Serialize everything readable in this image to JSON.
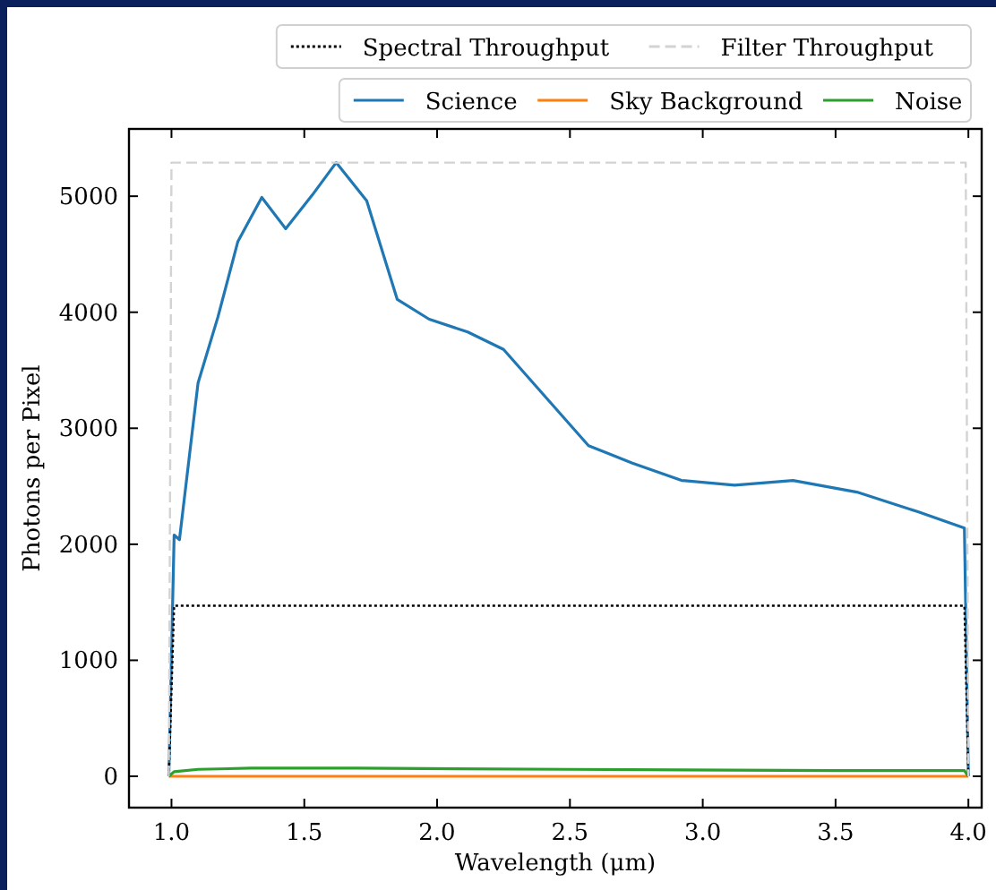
{
  "chart_data": {
    "type": "line",
    "xlabel": "Wavelength (μm)",
    "ylabel": "Photons per Pixel",
    "xlim": [
      0.84,
      4.05
    ],
    "ylim": [
      -270,
      5580
    ],
    "xticks": [
      {
        "value": 1,
        "label": "1.0"
      },
      {
        "value": 1.5,
        "label": "1.5"
      },
      {
        "value": 2,
        "label": "2.0"
      },
      {
        "value": 2.5,
        "label": "2.5"
      },
      {
        "value": 3,
        "label": "3.0"
      },
      {
        "value": 3.5,
        "label": "3.5"
      },
      {
        "value": 4,
        "label": "4.0"
      }
    ],
    "yticks": [
      0,
      1000,
      2000,
      3000,
      4000,
      5000
    ],
    "grid": false,
    "legend": "top",
    "marker": "none",
    "series": [
      {
        "name": "Spectral Throughput",
        "color": "#000000",
        "line_style": "dotted",
        "x": [
          0.99,
          1.01,
          3.985,
          4.0
        ],
        "values": [
          0,
          1470,
          1470,
          0
        ]
      },
      {
        "name": "Filter Throughput",
        "color": "#d3d3d3",
        "line_style": "dashed",
        "x": [
          0.99,
          1.0,
          3.99,
          4.0
        ],
        "values": [
          0,
          5290,
          5290,
          0
        ]
      },
      {
        "name": "Science",
        "color": "#1f77b4",
        "line_style": "solid",
        "x": [
          0.99,
          1.01,
          1.03,
          1.1,
          1.175,
          1.25,
          1.34,
          1.43,
          1.53,
          1.62,
          1.735,
          1.85,
          1.97,
          2.115,
          2.25,
          2.57,
          2.735,
          2.92,
          3.12,
          3.34,
          3.58,
          3.81,
          3.985,
          4.0
        ],
        "values": [
          0,
          2080,
          2040,
          3390,
          3960,
          4610,
          4990,
          4720,
          5010,
          5290,
          4960,
          4110,
          3940,
          3830,
          3680,
          2850,
          2700,
          2550,
          2510,
          2550,
          2450,
          2280,
          2140,
          0
        ]
      },
      {
        "name": "Sky Background",
        "color": "#ff7f0e",
        "line_style": "solid",
        "x": [
          0.99,
          1.5,
          2.5,
          3.5,
          4.0
        ],
        "values": [
          0,
          0,
          0,
          0,
          0
        ]
      },
      {
        "name": "Noise",
        "color": "#2ca02c",
        "line_style": "solid",
        "x": [
          0.99,
          1.01,
          1.1,
          1.3,
          1.7,
          2.5,
          3.5,
          3.985,
          4.0
        ],
        "values": [
          0,
          40,
          60,
          70,
          70,
          60,
          50,
          50,
          0
        ]
      }
    ]
  }
}
